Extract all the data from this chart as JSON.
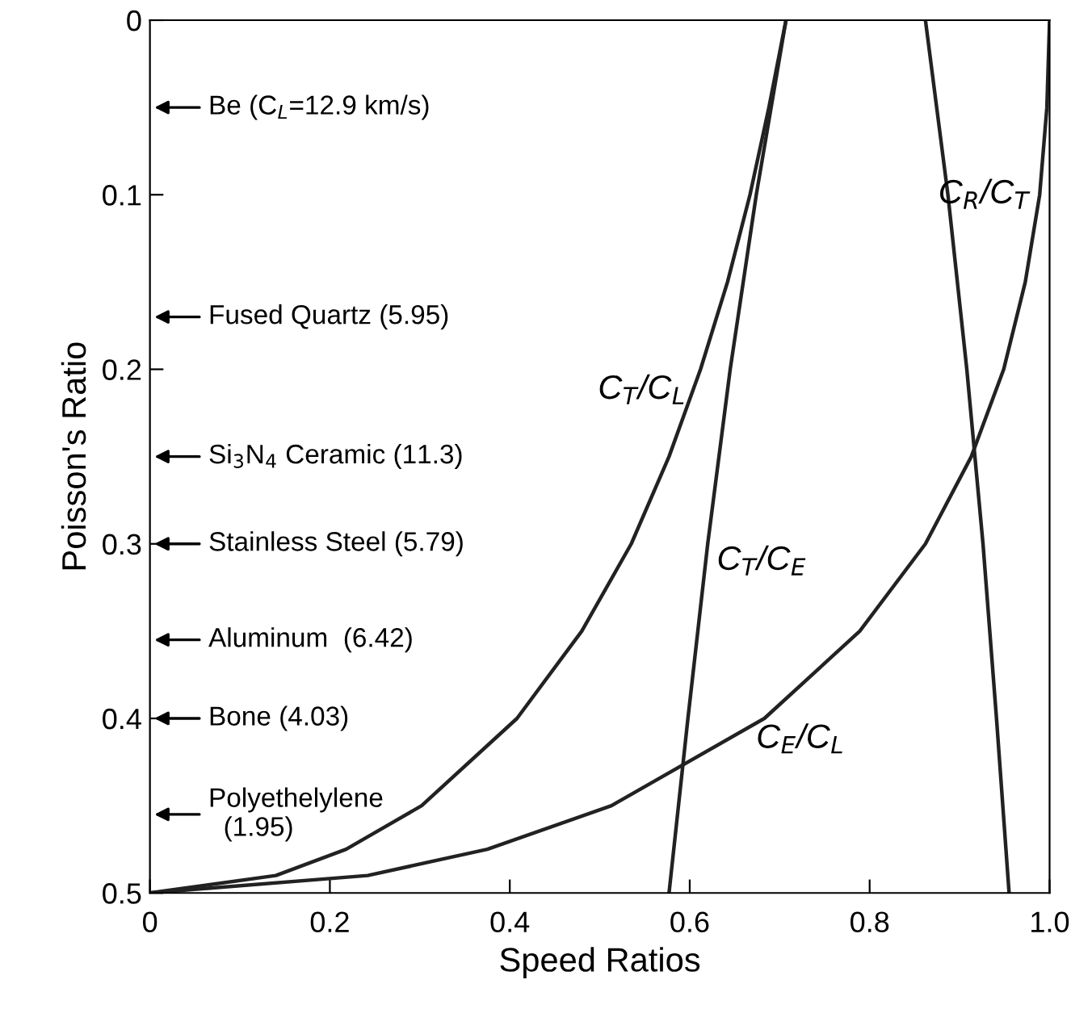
{
  "chart_data": {
    "type": "line",
    "xlabel": "Speed Ratios",
    "ylabel": "Poisson's Ratio",
    "xlim": [
      0,
      1
    ],
    "ylim": [
      0.5,
      0
    ],
    "xticks": [
      0,
      0.2,
      0.4,
      0.6,
      0.8,
      {
        "value": 1,
        "label": "1.0"
      }
    ],
    "yticks": [
      0,
      0.1,
      0.2,
      0.3,
      0.4,
      0.5
    ],
    "grid": false,
    "legend": false,
    "marker": "none",
    "line_style": "solid",
    "series": [
      {
        "name": "C$_{T}$/C$_{L}$",
        "color": "#222222",
        "x": [
          0.707,
          0.688,
          0.667,
          0.642,
          0.612,
          0.577,
          0.535,
          0.48,
          0.408,
          0.302,
          0.218,
          0.14,
          0
        ],
        "values": [
          0,
          0.05,
          0.1,
          0.15,
          0.2,
          0.25,
          0.3,
          0.35,
          0.4,
          0.45,
          0.475,
          0.49,
          0.5
        ]
      },
      {
        "name": "C$_{E}$/C$_{L}$",
        "color": "#222222",
        "x": [
          1,
          0.997,
          0.989,
          0.973,
          0.949,
          0.913,
          0.862,
          0.789,
          0.683,
          0.513,
          0.375,
          0.242,
          0
        ],
        "values": [
          0,
          0.05,
          0.1,
          0.15,
          0.2,
          0.25,
          0.3,
          0.35,
          0.4,
          0.45,
          0.475,
          0.49,
          0.5
        ]
      },
      {
        "name": "C$_{T}$/C$_{E}$",
        "color": "#222222",
        "x": [
          0.707,
          0.674,
          0.645,
          0.62,
          0.598,
          0.577
        ],
        "values": [
          0,
          0.1,
          0.2,
          0.3,
          0.4,
          0.5
        ]
      },
      {
        "name": "C$_{R}$/C$_{T}$",
        "color": "#222222",
        "x": [
          0.862,
          0.887,
          0.908,
          0.926,
          0.941,
          0.955
        ],
        "values": [
          0,
          0.1,
          0.2,
          0.3,
          0.4,
          0.5
        ]
      }
    ],
    "annotations": [
      "Be (C$_{L}$=12.9 km/s)",
      "Fused Quartz (5.95)",
      "Si$_{3}$N$_{4}$ Ceramic (11.3)",
      "Stainless Steel (5.79)",
      "Aluminum  (6.42)",
      "Bone (4.03)",
      "Polyethelylene\n  (1.95)"
    ]
  }
}
